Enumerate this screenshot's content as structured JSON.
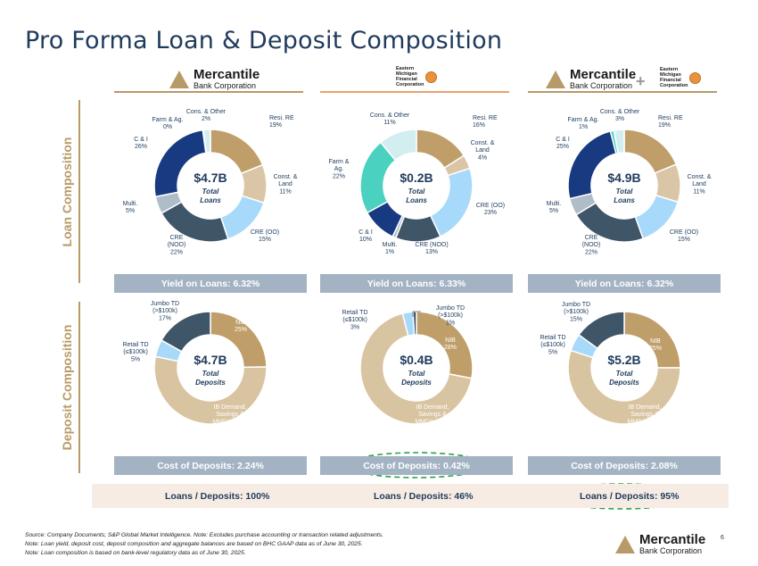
{
  "title": "Pro Forma Loan & Deposit Composition",
  "logos": {
    "mercantile_line1": "Mercantile",
    "mercantile_line2": "Bank Corporation",
    "eastern_l1": "Eastern",
    "eastern_l2": "Michigan",
    "eastern_l3": "Financial",
    "eastern_l4": "Corporation",
    "plus": "+"
  },
  "side_labels": {
    "loan": "Loan Composition",
    "deposit": "Deposit Composition"
  },
  "bars": {
    "yield_left": "Yield on Loans: 6.32%",
    "yield_mid": "Yield on Loans: 6.33%",
    "yield_right": "Yield on Loans: 6.32%",
    "cost_left": "Cost of Deposits: 2.24%",
    "cost_mid": "Cost of Deposits: 0.42%",
    "cost_right": "Cost of Deposits: 2.08%"
  },
  "ltd": {
    "left": "Loans / Deposits: 100%",
    "mid": "Loans / Deposits: 46%",
    "right": "Loans / Deposits: 95%"
  },
  "footnotes": {
    "f1": "Source: Company Documents; S&P Global Market Intelligence. Note: Excludes purchase accounting or transaction related adjustments.",
    "f2": "Note: Loan yield, deposit cost, deposit composition and aggregate balances are based on BHC GAAP data as of June 30, 2025.",
    "f3": "Note: Loan composition is based on bank-level regulatory data as of June 30, 2025."
  },
  "page_number": "6",
  "colors": {
    "resi": "#bf9e6a",
    "const": "#dac6a6",
    "cre_oo": "#a7dafa",
    "cre_noo": "#3f5568",
    "multi": "#afbdc8",
    "ci": "#173a80",
    "farm": "#4bd1c0",
    "cons": "#d2eef0",
    "nib": "#bf9e6a",
    "ib": "#d9c4a1",
    "retail": "#a7dafa",
    "jumbo": "#3f5568"
  },
  "chart_data": [
    {
      "type": "pie",
      "name": "mercantile-loans",
      "center_value": "$4.7B",
      "center_l1": "Total",
      "center_l2": "Loans",
      "slices": [
        {
          "label": "Resi. RE",
          "value": 19,
          "pct": "19%",
          "color": "resi"
        },
        {
          "label": "Const. & Land",
          "value": 11,
          "pct": "11%",
          "color": "const"
        },
        {
          "label": "CRE (OO)",
          "value": 15,
          "pct": "15%",
          "color": "cre_oo"
        },
        {
          "label": "CRE (NOO)",
          "value": 22,
          "pct": "22%",
          "color": "cre_noo"
        },
        {
          "label": "Multi.",
          "value": 5,
          "pct": "5%",
          "color": "multi"
        },
        {
          "label": "C & I",
          "value": 26,
          "pct": "26%",
          "color": "ci"
        },
        {
          "label": "Farm & Ag.",
          "value": 0.2,
          "pct": "0%",
          "color": "farm"
        },
        {
          "label": "Cons. & Other",
          "value": 2,
          "pct": "2%",
          "color": "cons"
        }
      ]
    },
    {
      "type": "pie",
      "name": "eastern-loans",
      "center_value": "$0.2B",
      "center_l1": "Total",
      "center_l2": "Loans",
      "slices": [
        {
          "label": "Resi. RE",
          "value": 16,
          "pct": "16%",
          "color": "resi"
        },
        {
          "label": "Const. & Land",
          "value": 4,
          "pct": "4%",
          "color": "const"
        },
        {
          "label": "CRE (OO)",
          "value": 23,
          "pct": "23%",
          "color": "cre_oo"
        },
        {
          "label": "CRE (NOO)",
          "value": 13,
          "pct": "13%",
          "color": "cre_noo"
        },
        {
          "label": "Multi.",
          "value": 1,
          "pct": "1%",
          "color": "multi"
        },
        {
          "label": "C & I",
          "value": 10,
          "pct": "10%",
          "color": "ci"
        },
        {
          "label": "Farm & Ag.",
          "value": 22,
          "pct": "22%",
          "color": "farm"
        },
        {
          "label": "Cons. & Other",
          "value": 11,
          "pct": "11%",
          "color": "cons"
        }
      ]
    },
    {
      "type": "pie",
      "name": "proforma-loans",
      "center_value": "$4.9B",
      "center_l1": "Total",
      "center_l2": "Loans",
      "slices": [
        {
          "label": "Resi. RE",
          "value": 19,
          "pct": "19%",
          "color": "resi"
        },
        {
          "label": "Const. & Land",
          "value": 11,
          "pct": "11%",
          "color": "const"
        },
        {
          "label": "CRE (OO)",
          "value": 15,
          "pct": "15%",
          "color": "cre_oo"
        },
        {
          "label": "CRE (NOO)",
          "value": 22,
          "pct": "22%",
          "color": "cre_noo"
        },
        {
          "label": "Multi.",
          "value": 5,
          "pct": "5%",
          "color": "multi"
        },
        {
          "label": "C & I",
          "value": 25,
          "pct": "25%",
          "color": "ci"
        },
        {
          "label": "Farm & Ag.",
          "value": 1,
          "pct": "1%",
          "color": "farm"
        },
        {
          "label": "Cons. & Other",
          "value": 3,
          "pct": "3%",
          "color": "cons"
        }
      ]
    },
    {
      "type": "pie",
      "name": "mercantile-deposits",
      "center_value": "$4.7B",
      "center_l1": "Total",
      "center_l2": "Deposits",
      "slices": [
        {
          "label": "NIB",
          "value": 25,
          "pct": "25%",
          "color": "nib"
        },
        {
          "label": "IB Demand, Savings & MMDA",
          "value": 54,
          "pct": "54%",
          "color": "ib"
        },
        {
          "label": "Retail TD (≤$100k)",
          "value": 5,
          "pct": "5%",
          "color": "retail"
        },
        {
          "label": "Jumbo TD (>$100k)",
          "value": 17,
          "pct": "17%",
          "color": "jumbo"
        }
      ]
    },
    {
      "type": "pie",
      "name": "eastern-deposits",
      "center_value": "$0.4B",
      "center_l1": "Total",
      "center_l2": "Deposits",
      "slices": [
        {
          "label": "NIB",
          "value": 28,
          "pct": "28%",
          "color": "nib"
        },
        {
          "label": "IB Demand, Savings & MMDA",
          "value": 68,
          "pct": "68%",
          "color": "ib"
        },
        {
          "label": "Retail TD (≤$100k)",
          "value": 3,
          "pct": "3%",
          "color": "retail"
        },
        {
          "label": "Jumbo TD (>$100k)",
          "value": 1,
          "pct": "1%",
          "color": "jumbo"
        }
      ]
    },
    {
      "type": "pie",
      "name": "proforma-deposits",
      "center_value": "$5.2B",
      "center_l1": "Total",
      "center_l2": "Deposits",
      "slices": [
        {
          "label": "NIB",
          "value": 25,
          "pct": "25%",
          "color": "nib"
        },
        {
          "label": "IB Demand, Savings & MMDA",
          "value": 55,
          "pct": "55%",
          "color": "ib"
        },
        {
          "label": "Retail TD (≤$100k)",
          "value": 5,
          "pct": "5%",
          "color": "retail"
        },
        {
          "label": "Jumbo TD (>$100k)",
          "value": 15,
          "pct": "15%",
          "color": "jumbo"
        }
      ]
    }
  ]
}
